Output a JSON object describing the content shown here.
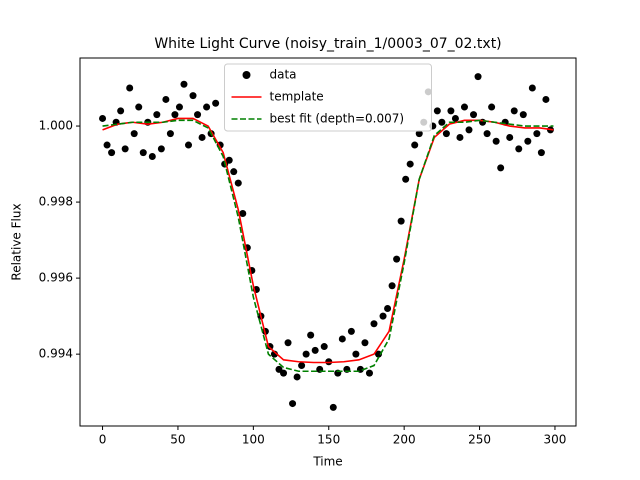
{
  "chart_data": {
    "type": "scatter",
    "title": "White Light Curve (noisy_train_1/0003_07_02.txt)",
    "x_label": "Time",
    "y_label": "Relative Flux",
    "xlim": [
      -14.95,
      313.95
    ],
    "ylim": [
      0.99211,
      1.00179
    ],
    "xticks": [
      0,
      50,
      100,
      150,
      200,
      250,
      300
    ],
    "yticks": [
      0.994,
      0.996,
      0.998,
      {
        "value": 1,
        "label": "1.000"
      }
    ],
    "legend_loc": "upper center",
    "series": [
      {
        "name": "data",
        "kind": "scatter",
        "color": "#000000",
        "x": [
          0,
          3,
          6,
          9,
          12,
          15,
          18,
          21,
          24,
          27,
          30,
          33,
          36,
          39,
          42,
          45,
          48,
          51,
          54,
          57,
          60,
          63,
          66,
          69,
          72,
          75,
          78,
          81,
          84,
          87,
          90,
          93,
          96,
          99,
          102,
          105,
          108,
          111,
          114,
          117,
          120,
          123,
          126,
          129,
          132,
          135,
          138,
          141,
          144,
          147,
          150,
          153,
          156,
          159,
          162,
          165,
          168,
          171,
          174,
          177,
          180,
          183,
          186,
          189,
          192,
          195,
          198,
          201,
          204,
          207,
          210,
          213,
          216,
          219,
          222,
          225,
          228,
          231,
          234,
          237,
          240,
          243,
          246,
          249,
          252,
          255,
          258,
          261,
          264,
          267,
          270,
          273,
          276,
          279,
          282,
          285,
          288,
          291,
          294,
          297
        ],
        "values": [
          1.0002,
          0.9995,
          0.9993,
          1.0001,
          1.0004,
          0.9994,
          1.001,
          0.9998,
          1.0005,
          0.9993,
          1.0001,
          0.9992,
          1.0003,
          0.9994,
          1.0007,
          0.9998,
          1.0003,
          1.0005,
          1.0011,
          0.9995,
          1.0008,
          1.0003,
          0.9997,
          1.0005,
          0.9998,
          1.0006,
          0.9995,
          0.999,
          0.9991,
          0.9988,
          0.9985,
          0.9977,
          0.9968,
          0.9962,
          0.9957,
          0.995,
          0.9946,
          0.9942,
          0.994,
          0.9936,
          0.9935,
          0.9943,
          0.9927,
          0.9934,
          0.9937,
          0.994,
          0.9945,
          0.9941,
          0.9936,
          0.9942,
          0.9938,
          0.9926,
          0.9935,
          0.9944,
          0.9936,
          0.9946,
          0.994,
          0.9936,
          0.9943,
          0.9935,
          0.9948,
          0.994,
          0.995,
          0.9952,
          0.9958,
          0.9965,
          0.9975,
          0.9986,
          0.999,
          0.9995,
          0.9998,
          1.0001,
          1.0009,
          1.0,
          1.0004,
          1.0001,
          0.9998,
          1.0004,
          1.0002,
          0.9997,
          1.0005,
          0.9999,
          1.0003,
          1.0013,
          1.0001,
          0.9998,
          1.0005,
          0.9996,
          0.9989,
          1.0001,
          0.9997,
          1.0004,
          0.9994,
          1.0003,
          0.9996,
          1.001,
          0.9998,
          0.9993,
          1.0007,
          0.9999
        ]
      },
      {
        "name": "template",
        "kind": "line",
        "color": "#ff0000",
        "dash": false,
        "x": [
          0,
          10,
          20,
          30,
          40,
          50,
          60,
          70,
          80,
          90,
          100,
          110,
          120,
          130,
          140,
          150,
          160,
          170,
          180,
          190,
          200,
          210,
          220,
          230,
          240,
          250,
          260,
          270,
          280,
          290,
          299
        ],
        "values": [
          0.9999,
          1.00005,
          1.0001,
          1.00005,
          1.0001,
          1.0002,
          1.0002,
          1.0,
          0.9993,
          0.9978,
          0.9958,
          0.9942,
          0.99385,
          0.9938,
          0.99378,
          0.99378,
          0.9938,
          0.99385,
          0.994,
          0.9946,
          0.9965,
          0.9986,
          0.9997,
          1.00005,
          1.00015,
          1.00015,
          1.0001,
          1.0,
          0.99995,
          0.99995,
          0.9999
        ]
      },
      {
        "name": "best fit (depth=0.007)",
        "kind": "line",
        "color": "#008000",
        "dash": true,
        "x": [
          0,
          10,
          20,
          30,
          40,
          50,
          60,
          70,
          80,
          90,
          100,
          110,
          120,
          130,
          140,
          150,
          160,
          170,
          180,
          190,
          200,
          210,
          220,
          230,
          240,
          250,
          260,
          270,
          280,
          290,
          299
        ],
        "values": [
          1.0,
          1.00005,
          1.0001,
          1.0001,
          1.0001,
          1.00015,
          1.00015,
          0.99995,
          0.9992,
          0.9976,
          0.9955,
          0.994,
          0.99365,
          0.99355,
          0.99355,
          0.99355,
          0.99355,
          0.99355,
          0.9937,
          0.9944,
          0.9964,
          0.9986,
          0.99975,
          1.0001,
          1.0001,
          1.00015,
          1.0001,
          1.00005,
          1.0,
          1.0,
          1.0
        ]
      }
    ]
  }
}
